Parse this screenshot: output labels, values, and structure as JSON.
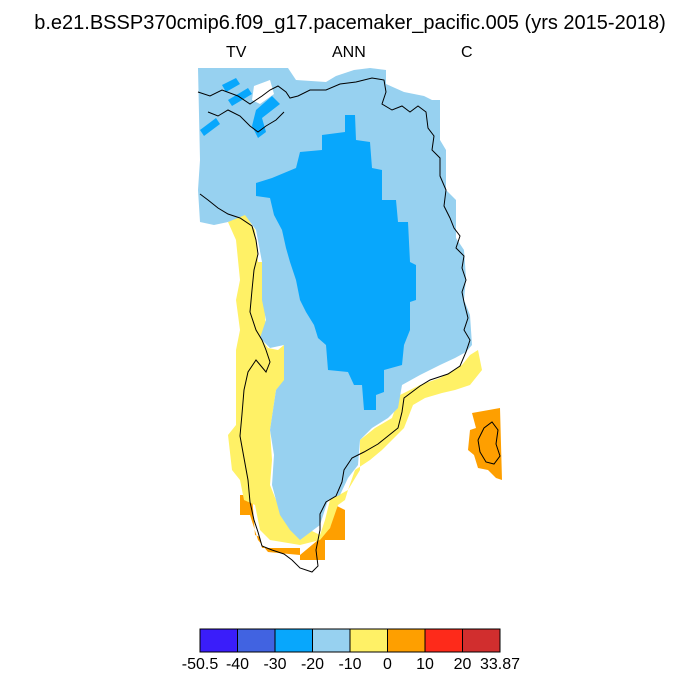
{
  "title": "b.e21.BSSP370cmip6.f09_g17.pacemaker_pacific.005 (yrs 2015-2018)",
  "subtitles": {
    "left": "TV",
    "center": "ANN",
    "right": "C"
  },
  "colorbar": {
    "tick_labels": [
      "-50.5",
      "-40",
      "-30",
      "-20",
      "-10",
      "0",
      "10",
      "20",
      "33.87"
    ],
    "colors": [
      "#3a1dfa",
      "#4163e1",
      "#08a7fc",
      "#97d1f0",
      "#fff166",
      "#fe9f00",
      "#fe2a1a",
      "#d12e2e"
    ]
  }
}
